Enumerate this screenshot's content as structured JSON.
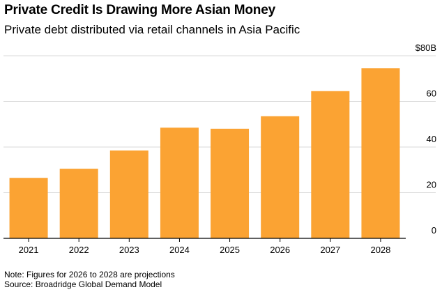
{
  "header": {
    "title": "Private Credit Is Drawing More Asian Money",
    "subtitle": "Private debt distributed via retail channels in Asia Pacific"
  },
  "footer": {
    "note": "Note: Figures for 2026 to 2028 are projections",
    "source": "Source: Broadridge Global Demand Model"
  },
  "colors": {
    "bar": "#FBA333",
    "grid": "#D9D9D9",
    "axis": "#000000"
  },
  "chart_data": {
    "type": "bar",
    "title": "Private Credit Is Drawing More Asian Money",
    "subtitle": "Private debt distributed via retail channels in Asia Pacific",
    "categories": [
      "2021",
      "2022",
      "2023",
      "2024",
      "2025",
      "2026",
      "2027",
      "2028"
    ],
    "values": [
      26.5,
      30.5,
      38.5,
      48.5,
      48,
      53.5,
      64.5,
      74.5
    ],
    "ylim": [
      0,
      80
    ],
    "yticks": [
      0,
      20,
      40,
      60,
      80
    ],
    "ytick_labels": [
      "0",
      "20",
      "40",
      "60",
      "$80B"
    ],
    "y_axis_side": "right",
    "grid": true,
    "legend": "none"
  }
}
